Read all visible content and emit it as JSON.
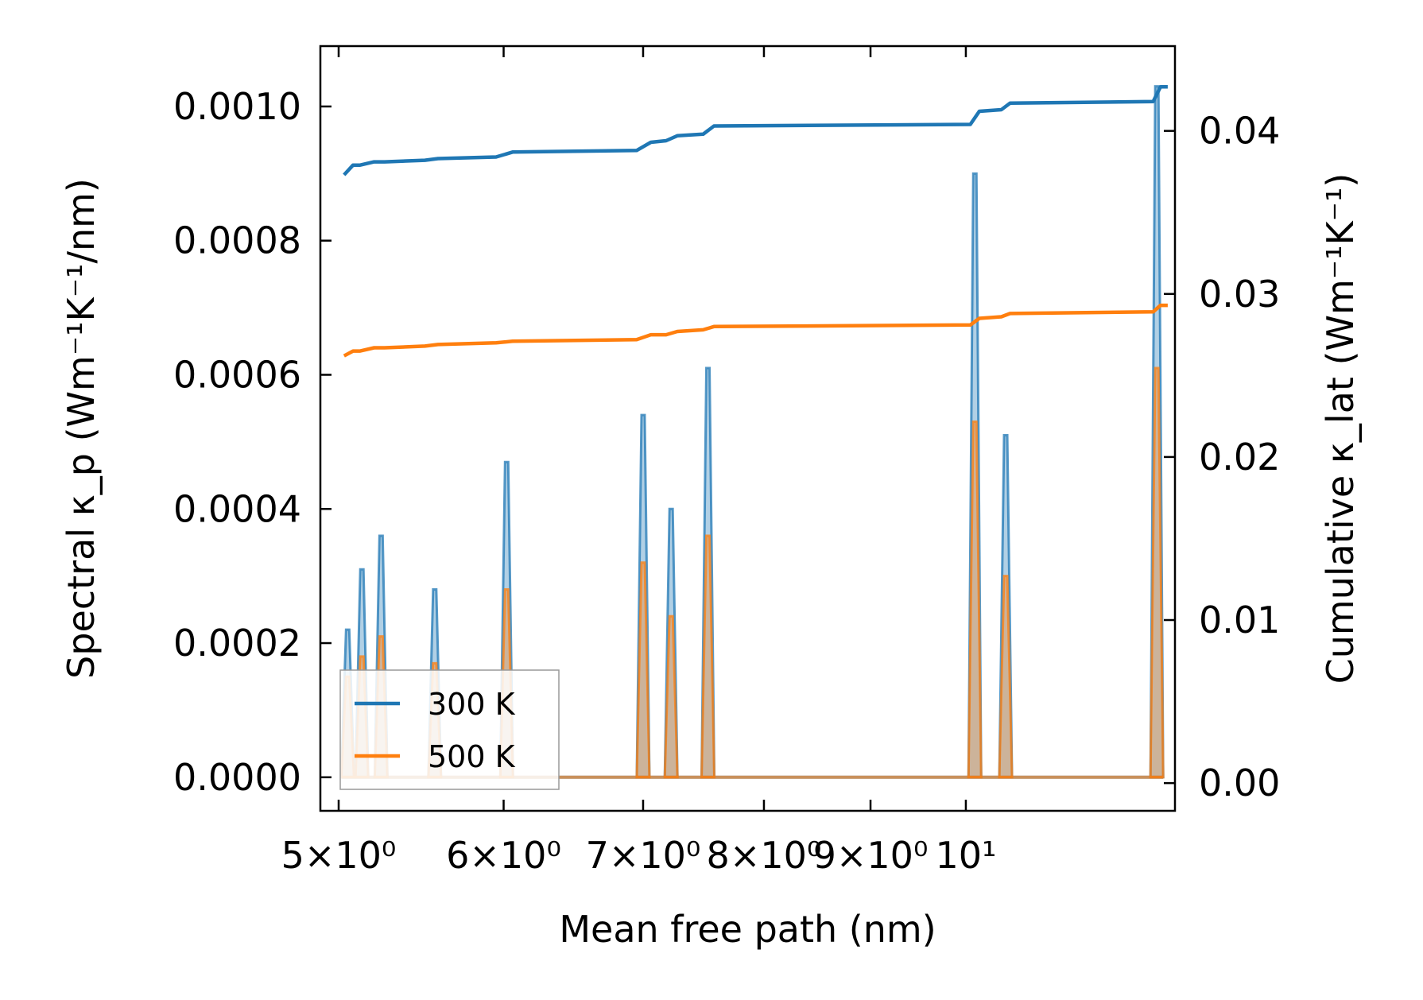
{
  "chart_data": {
    "type": "line",
    "xlabel": "Mean free path (nm)",
    "ylabel": "Spectral κ_p (Wm⁻¹K⁻¹/nm)",
    "ylabel_right": "Cumulative κ_lat (Wm⁻¹K⁻¹)",
    "xscale": "log",
    "xlim": [
      4.9,
      12.6
    ],
    "ylim": [
      -5e-05,
      0.00109
    ],
    "ylim_right": [
      -0.0017,
      0.0452
    ],
    "yticks": [
      "0.0000",
      "0.0002",
      "0.0004",
      "0.0006",
      "0.0008",
      "0.0010"
    ],
    "yticks_values": [
      0,
      0.0002,
      0.0004,
      0.0006,
      0.0008,
      0.001
    ],
    "yticks_right": [
      "0.00",
      "0.01",
      "0.02",
      "0.03",
      "0.04"
    ],
    "yticks_right_values": [
      0,
      0.01,
      0.02,
      0.03,
      0.04
    ],
    "xticks": [
      "5×10⁰",
      "6×10⁰",
      "7×10⁰",
      "8×10⁰",
      "9×10⁰",
      "10¹"
    ],
    "xticks_values": [
      5,
      6,
      7,
      8,
      9,
      10
    ],
    "legend": {
      "position": "lower-left",
      "entries": [
        "300 K",
        "500 K"
      ]
    },
    "colors": {
      "300 K": "#1f77b4",
      "500 K": "#ff7f0e"
    },
    "series": [
      {
        "name": "300 K",
        "spectral_peaks": [
          {
            "x": 5.05,
            "y": 0.00022
          },
          {
            "x": 5.13,
            "y": 0.00031
          },
          {
            "x": 5.24,
            "y": 0.00036
          },
          {
            "x": 5.56,
            "y": 0.00028
          },
          {
            "x": 6.02,
            "y": 0.00047
          },
          {
            "x": 7.0,
            "y": 0.00054
          },
          {
            "x": 7.22,
            "y": 0.0004
          },
          {
            "x": 7.52,
            "y": 0.00061
          },
          {
            "x": 10.1,
            "y": 0.0009
          },
          {
            "x": 10.45,
            "y": 0.00051
          },
          {
            "x": 12.35,
            "y": 0.00103
          }
        ],
        "cumulative": {
          "x": [
            5.03,
            5.08,
            5.12,
            5.2,
            5.26,
            5.5,
            5.58,
            5.95,
            6.06,
            6.95,
            7.06,
            7.18,
            7.27,
            7.48,
            7.57,
            10.05,
            10.15,
            10.4,
            10.5,
            12.3,
            12.4,
            12.5
          ],
          "y": [
            0.0373,
            0.0379,
            0.0379,
            0.0381,
            0.0381,
            0.0382,
            0.0383,
            0.0384,
            0.0387,
            0.0388,
            0.0393,
            0.0394,
            0.0397,
            0.0398,
            0.0403,
            0.0404,
            0.0412,
            0.0413,
            0.0417,
            0.0418,
            0.0427,
            0.0427
          ]
        }
      },
      {
        "name": "500 K",
        "spectral_peaks": [
          {
            "x": 5.05,
            "y": 0.00015
          },
          {
            "x": 5.13,
            "y": 0.00018
          },
          {
            "x": 5.24,
            "y": 0.00021
          },
          {
            "x": 5.56,
            "y": 0.00017
          },
          {
            "x": 6.02,
            "y": 0.00028
          },
          {
            "x": 7.0,
            "y": 0.00032
          },
          {
            "x": 7.22,
            "y": 0.00024
          },
          {
            "x": 7.52,
            "y": 0.00036
          },
          {
            "x": 10.1,
            "y": 0.00053
          },
          {
            "x": 10.45,
            "y": 0.0003
          },
          {
            "x": 12.35,
            "y": 0.00061
          }
        ],
        "cumulative": {
          "x": [
            5.03,
            5.08,
            5.12,
            5.2,
            5.26,
            5.5,
            5.58,
            5.95,
            6.06,
            6.95,
            7.06,
            7.18,
            7.27,
            7.48,
            7.57,
            10.05,
            10.15,
            10.4,
            10.5,
            12.3,
            12.4,
            12.5
          ],
          "y": [
            0.0262,
            0.0265,
            0.0265,
            0.0267,
            0.0267,
            0.0268,
            0.0269,
            0.027,
            0.0271,
            0.0272,
            0.0275,
            0.0275,
            0.0277,
            0.0278,
            0.028,
            0.0281,
            0.0285,
            0.0286,
            0.0288,
            0.0289,
            0.0293,
            0.0293
          ]
        }
      }
    ]
  }
}
